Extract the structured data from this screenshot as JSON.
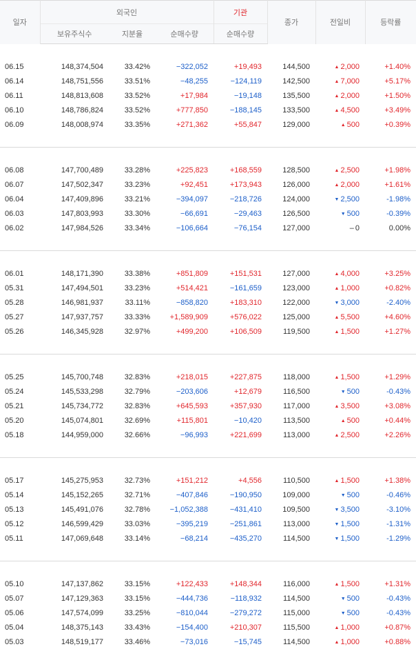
{
  "headers": {
    "date": "일자",
    "foreign": "외국인",
    "institution": "기관",
    "close": "종가",
    "change": "전일비",
    "rate": "등락률",
    "holdings": "보유주식수",
    "share": "지분율",
    "foreign_net": "순매수량",
    "inst_net": "순매수량"
  },
  "colors": {
    "up": "#e1262c",
    "down": "#1d5fc9",
    "neutral": "#333333"
  },
  "groups": [
    [
      {
        "date": "06.15",
        "holdings": "148,374,504",
        "share": "33.42%",
        "foreign_net": "−322,052",
        "inst_net": "+19,493",
        "close": "144,500",
        "dir": "up",
        "change": "2,000",
        "rate": "+1.40%"
      },
      {
        "date": "06.14",
        "holdings": "148,751,556",
        "share": "33.51%",
        "foreign_net": "−48,255",
        "inst_net": "−124,119",
        "close": "142,500",
        "dir": "up",
        "change": "7,000",
        "rate": "+5.17%"
      },
      {
        "date": "06.11",
        "holdings": "148,813,608",
        "share": "33.52%",
        "foreign_net": "+17,984",
        "inst_net": "−19,148",
        "close": "135,500",
        "dir": "up",
        "change": "2,000",
        "rate": "+1.50%"
      },
      {
        "date": "06.10",
        "holdings": "148,786,824",
        "share": "33.52%",
        "foreign_net": "+777,850",
        "inst_net": "−188,145",
        "close": "133,500",
        "dir": "up",
        "change": "4,500",
        "rate": "+3.49%"
      },
      {
        "date": "06.09",
        "holdings": "148,008,974",
        "share": "33.35%",
        "foreign_net": "+271,362",
        "inst_net": "+55,847",
        "close": "129,000",
        "dir": "up",
        "change": "500",
        "rate": "+0.39%"
      }
    ],
    [
      {
        "date": "06.08",
        "holdings": "147,700,489",
        "share": "33.28%",
        "foreign_net": "+225,823",
        "inst_net": "+168,559",
        "close": "128,500",
        "dir": "up",
        "change": "2,500",
        "rate": "+1.98%"
      },
      {
        "date": "06.07",
        "holdings": "147,502,347",
        "share": "33.23%",
        "foreign_net": "+92,451",
        "inst_net": "+173,943",
        "close": "126,000",
        "dir": "up",
        "change": "2,000",
        "rate": "+1.61%"
      },
      {
        "date": "06.04",
        "holdings": "147,409,896",
        "share": "33.21%",
        "foreign_net": "−394,097",
        "inst_net": "−218,726",
        "close": "124,000",
        "dir": "down",
        "change": "2,500",
        "rate": "-1.98%"
      },
      {
        "date": "06.03",
        "holdings": "147,803,993",
        "share": "33.30%",
        "foreign_net": "−66,691",
        "inst_net": "−29,463",
        "close": "126,500",
        "dir": "down",
        "change": "500",
        "rate": "-0.39%"
      },
      {
        "date": "06.02",
        "holdings": "147,984,526",
        "share": "33.34%",
        "foreign_net": "−106,664",
        "inst_net": "−76,154",
        "close": "127,000",
        "dir": "flat",
        "change": "0",
        "rate": "0.00%"
      }
    ],
    [
      {
        "date": "06.01",
        "holdings": "148,171,390",
        "share": "33.38%",
        "foreign_net": "+851,809",
        "inst_net": "+151,531",
        "close": "127,000",
        "dir": "up",
        "change": "4,000",
        "rate": "+3.25%"
      },
      {
        "date": "05.31",
        "holdings": "147,494,501",
        "share": "33.23%",
        "foreign_net": "+514,421",
        "inst_net": "−161,659",
        "close": "123,000",
        "dir": "up",
        "change": "1,000",
        "rate": "+0.82%"
      },
      {
        "date": "05.28",
        "holdings": "146,981,937",
        "share": "33.11%",
        "foreign_net": "−858,820",
        "inst_net": "+183,310",
        "close": "122,000",
        "dir": "down",
        "change": "3,000",
        "rate": "-2.40%"
      },
      {
        "date": "05.27",
        "holdings": "147,937,757",
        "share": "33.33%",
        "foreign_net": "+1,589,909",
        "inst_net": "+576,022",
        "close": "125,000",
        "dir": "up",
        "change": "5,500",
        "rate": "+4.60%"
      },
      {
        "date": "05.26",
        "holdings": "146,345,928",
        "share": "32.97%",
        "foreign_net": "+499,200",
        "inst_net": "+106,509",
        "close": "119,500",
        "dir": "up",
        "change": "1,500",
        "rate": "+1.27%"
      }
    ],
    [
      {
        "date": "05.25",
        "holdings": "145,700,748",
        "share": "32.83%",
        "foreign_net": "+218,015",
        "inst_net": "+227,875",
        "close": "118,000",
        "dir": "up",
        "change": "1,500",
        "rate": "+1.29%"
      },
      {
        "date": "05.24",
        "holdings": "145,533,298",
        "share": "32.79%",
        "foreign_net": "−203,606",
        "inst_net": "+12,679",
        "close": "116,500",
        "dir": "down",
        "change": "500",
        "rate": "-0.43%"
      },
      {
        "date": "05.21",
        "holdings": "145,734,772",
        "share": "32.83%",
        "foreign_net": "+645,593",
        "inst_net": "+357,930",
        "close": "117,000",
        "dir": "up",
        "change": "3,500",
        "rate": "+3.08%"
      },
      {
        "date": "05.20",
        "holdings": "145,074,801",
        "share": "32.69%",
        "foreign_net": "+115,801",
        "inst_net": "−10,420",
        "close": "113,500",
        "dir": "up",
        "change": "500",
        "rate": "+0.44%"
      },
      {
        "date": "05.18",
        "holdings": "144,959,000",
        "share": "32.66%",
        "foreign_net": "−96,993",
        "inst_net": "+221,699",
        "close": "113,000",
        "dir": "up",
        "change": "2,500",
        "rate": "+2.26%"
      }
    ],
    [
      {
        "date": "05.17",
        "holdings": "145,275,953",
        "share": "32.73%",
        "foreign_net": "+151,212",
        "inst_net": "+4,556",
        "close": "110,500",
        "dir": "up",
        "change": "1,500",
        "rate": "+1.38%"
      },
      {
        "date": "05.14",
        "holdings": "145,152,265",
        "share": "32.71%",
        "foreign_net": "−407,846",
        "inst_net": "−190,950",
        "close": "109,000",
        "dir": "down",
        "change": "500",
        "rate": "-0.46%"
      },
      {
        "date": "05.13",
        "holdings": "145,491,076",
        "share": "32.78%",
        "foreign_net": "−1,052,388",
        "inst_net": "−431,410",
        "close": "109,500",
        "dir": "down",
        "change": "3,500",
        "rate": "-3.10%"
      },
      {
        "date": "05.12",
        "holdings": "146,599,429",
        "share": "33.03%",
        "foreign_net": "−395,219",
        "inst_net": "−251,861",
        "close": "113,000",
        "dir": "down",
        "change": "1,500",
        "rate": "-1.31%"
      },
      {
        "date": "05.11",
        "holdings": "147,069,648",
        "share": "33.14%",
        "foreign_net": "−68,214",
        "inst_net": "−435,270",
        "close": "114,500",
        "dir": "down",
        "change": "1,500",
        "rate": "-1.29%"
      }
    ],
    [
      {
        "date": "05.10",
        "holdings": "147,137,862",
        "share": "33.15%",
        "foreign_net": "+122,433",
        "inst_net": "+148,344",
        "close": "116,000",
        "dir": "up",
        "change": "1,500",
        "rate": "+1.31%"
      },
      {
        "date": "05.07",
        "holdings": "147,129,363",
        "share": "33.15%",
        "foreign_net": "−444,736",
        "inst_net": "−118,932",
        "close": "114,500",
        "dir": "down",
        "change": "500",
        "rate": "-0.43%"
      },
      {
        "date": "05.06",
        "holdings": "147,574,099",
        "share": "33.25%",
        "foreign_net": "−810,044",
        "inst_net": "−279,272",
        "close": "115,000",
        "dir": "down",
        "change": "500",
        "rate": "-0.43%"
      },
      {
        "date": "05.04",
        "holdings": "148,375,143",
        "share": "33.43%",
        "foreign_net": "−154,400",
        "inst_net": "+210,307",
        "close": "115,500",
        "dir": "up",
        "change": "1,000",
        "rate": "+0.87%"
      },
      {
        "date": "05.03",
        "holdings": "148,519,177",
        "share": "33.46%",
        "foreign_net": "−73,016",
        "inst_net": "−15,745",
        "close": "114,500",
        "dir": "up",
        "change": "1,000",
        "rate": "+0.88%"
      }
    ]
  ]
}
